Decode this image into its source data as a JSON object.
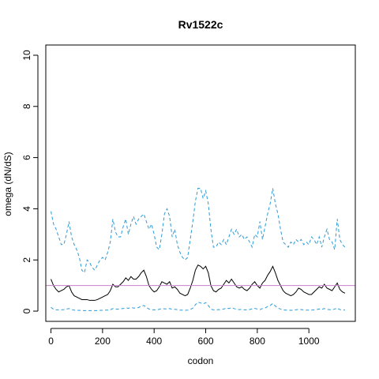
{
  "chart_data": {
    "type": "line",
    "title": "Rv1522c",
    "xlabel": "codon",
    "ylabel": "omega (dN/dS)",
    "xlim": [
      -20,
      1180
    ],
    "ylim": [
      -0.4,
      10.4
    ],
    "x_ticks": [
      0,
      200,
      400,
      600,
      800,
      1000
    ],
    "y_ticks": [
      0,
      2,
      4,
      6,
      8,
      10
    ],
    "grid": false,
    "reference_line": {
      "y": 1,
      "color": "#c77fc7"
    },
    "series": [
      {
        "role": "upper",
        "color": "#2b9bd8",
        "dash": "dashed",
        "x": [
          0,
          10,
          20,
          30,
          40,
          50,
          60,
          70,
          80,
          90,
          100,
          110,
          120,
          130,
          140,
          150,
          160,
          170,
          180,
          190,
          200,
          210,
          220,
          230,
          240,
          250,
          260,
          270,
          280,
          290,
          300,
          310,
          320,
          330,
          340,
          350,
          360,
          370,
          380,
          390,
          400,
          410,
          420,
          430,
          440,
          450,
          460,
          470,
          480,
          490,
          500,
          510,
          520,
          530,
          540,
          550,
          560,
          570,
          580,
          590,
          600,
          610,
          620,
          630,
          640,
          650,
          660,
          670,
          680,
          690,
          700,
          710,
          720,
          730,
          740,
          750,
          760,
          770,
          780,
          790,
          800,
          810,
          820,
          830,
          840,
          850,
          860,
          870,
          880,
          890,
          900,
          910,
          920,
          930,
          940,
          950,
          960,
          970,
          980,
          990,
          1000,
          1010,
          1020,
          1030,
          1040,
          1050,
          1060,
          1070,
          1080,
          1090,
          1100,
          1110,
          1120,
          1130,
          1140
        ],
        "values": [
          3.9,
          3.4,
          3.2,
          2.9,
          2.6,
          2.6,
          3.0,
          3.5,
          2.9,
          2.6,
          2.4,
          2.1,
          1.6,
          1.5,
          2.0,
          1.9,
          1.7,
          1.6,
          1.8,
          2.0,
          2.1,
          2.0,
          2.3,
          2.7,
          3.6,
          3.1,
          2.9,
          2.9,
          3.3,
          3.6,
          3.0,
          3.4,
          3.7,
          3.4,
          3.6,
          3.7,
          3.8,
          3.5,
          3.2,
          3.4,
          3.0,
          2.5,
          2.4,
          3.0,
          3.8,
          4.0,
          3.7,
          2.9,
          3.2,
          2.6,
          2.3,
          2.1,
          2.0,
          2.1,
          2.8,
          3.5,
          4.3,
          4.8,
          4.8,
          4.4,
          4.7,
          4.2,
          3.2,
          2.5,
          2.5,
          2.7,
          2.6,
          2.8,
          2.6,
          2.9,
          3.2,
          3.0,
          3.2,
          2.9,
          3.0,
          2.8,
          2.9,
          2.7,
          2.5,
          3.0,
          2.9,
          3.5,
          2.8,
          3.3,
          3.8,
          4.2,
          4.8,
          4.2,
          3.8,
          3.2,
          2.7,
          2.6,
          2.5,
          2.7,
          2.6,
          2.8,
          2.7,
          2.8,
          2.6,
          2.7,
          2.6,
          2.9,
          2.8,
          2.6,
          2.9,
          2.5,
          2.9,
          3.2,
          2.8,
          2.7,
          2.4,
          3.6,
          2.8,
          2.6,
          2.5
        ]
      },
      {
        "role": "estimate",
        "color": "#000000",
        "dash": "solid",
        "x": [
          0,
          10,
          20,
          30,
          40,
          50,
          60,
          70,
          80,
          90,
          100,
          110,
          120,
          130,
          140,
          150,
          160,
          170,
          180,
          190,
          200,
          210,
          220,
          230,
          240,
          250,
          260,
          270,
          280,
          290,
          300,
          310,
          320,
          330,
          340,
          350,
          360,
          370,
          380,
          390,
          400,
          410,
          420,
          430,
          440,
          450,
          460,
          470,
          480,
          490,
          500,
          510,
          520,
          530,
          540,
          550,
          560,
          570,
          580,
          590,
          600,
          610,
          620,
          630,
          640,
          650,
          660,
          670,
          680,
          690,
          700,
          710,
          720,
          730,
          740,
          750,
          760,
          770,
          780,
          790,
          800,
          810,
          820,
          830,
          840,
          850,
          860,
          870,
          880,
          890,
          900,
          910,
          920,
          930,
          940,
          950,
          960,
          970,
          980,
          990,
          1000,
          1010,
          1020,
          1030,
          1040,
          1050,
          1060,
          1070,
          1080,
          1090,
          1100,
          1110,
          1120,
          1130,
          1140
        ],
        "values": [
          1.25,
          1.0,
          0.85,
          0.75,
          0.8,
          0.85,
          0.95,
          1.0,
          0.75,
          0.6,
          0.55,
          0.5,
          0.45,
          0.45,
          0.45,
          0.42,
          0.42,
          0.42,
          0.45,
          0.5,
          0.55,
          0.6,
          0.65,
          0.8,
          1.05,
          0.95,
          0.95,
          1.05,
          1.15,
          1.3,
          1.2,
          1.35,
          1.25,
          1.25,
          1.35,
          1.5,
          1.6,
          1.35,
          1.0,
          0.85,
          0.75,
          0.8,
          0.95,
          1.15,
          1.1,
          1.05,
          1.15,
          0.9,
          0.95,
          0.85,
          0.7,
          0.65,
          0.6,
          0.65,
          0.9,
          1.2,
          1.6,
          1.8,
          1.75,
          1.65,
          1.75,
          1.5,
          1.0,
          0.8,
          0.75,
          0.85,
          0.9,
          1.05,
          1.2,
          1.1,
          1.25,
          1.1,
          0.95,
          0.9,
          0.95,
          0.85,
          0.8,
          0.9,
          1.05,
          1.15,
          1.0,
          0.9,
          1.1,
          1.2,
          1.4,
          1.55,
          1.75,
          1.5,
          1.2,
          1.0,
          0.8,
          0.7,
          0.65,
          0.6,
          0.65,
          0.75,
          0.9,
          0.85,
          0.75,
          0.7,
          0.65,
          0.65,
          0.75,
          0.85,
          0.95,
          0.9,
          1.05,
          0.9,
          0.85,
          0.8,
          0.95,
          1.1,
          0.85,
          0.75,
          0.7
        ]
      },
      {
        "role": "lower",
        "color": "#2b9bd8",
        "dash": "dashed",
        "x": [
          0,
          10,
          20,
          30,
          40,
          50,
          60,
          70,
          80,
          90,
          100,
          110,
          120,
          130,
          140,
          150,
          160,
          170,
          180,
          190,
          200,
          210,
          220,
          230,
          240,
          250,
          260,
          270,
          280,
          290,
          300,
          310,
          320,
          330,
          340,
          350,
          360,
          370,
          380,
          390,
          400,
          410,
          420,
          430,
          440,
          450,
          460,
          470,
          480,
          490,
          500,
          510,
          520,
          530,
          540,
          550,
          560,
          570,
          580,
          590,
          600,
          610,
          620,
          630,
          640,
          650,
          660,
          670,
          680,
          690,
          700,
          710,
          720,
          730,
          740,
          750,
          760,
          770,
          780,
          790,
          800,
          810,
          820,
          830,
          840,
          850,
          860,
          870,
          880,
          890,
          900,
          910,
          920,
          930,
          940,
          950,
          960,
          970,
          980,
          990,
          1000,
          1010,
          1020,
          1030,
          1040,
          1050,
          1060,
          1070,
          1080,
          1090,
          1100,
          1110,
          1120,
          1130,
          1140
        ],
        "values": [
          0.15,
          0.07,
          0.05,
          0.05,
          0.05,
          0.06,
          0.08,
          0.1,
          0.06,
          0.04,
          0.03,
          0.03,
          0.02,
          0.02,
          0.02,
          0.02,
          0.02,
          0.02,
          0.02,
          0.03,
          0.03,
          0.04,
          0.04,
          0.05,
          0.1,
          0.08,
          0.08,
          0.09,
          0.1,
          0.13,
          0.11,
          0.14,
          0.12,
          0.12,
          0.14,
          0.2,
          0.22,
          0.15,
          0.08,
          0.06,
          0.05,
          0.05,
          0.07,
          0.1,
          0.09,
          0.08,
          0.1,
          0.07,
          0.07,
          0.06,
          0.04,
          0.04,
          0.03,
          0.04,
          0.06,
          0.12,
          0.25,
          0.35,
          0.32,
          0.28,
          0.33,
          0.22,
          0.08,
          0.05,
          0.05,
          0.06,
          0.06,
          0.08,
          0.12,
          0.1,
          0.14,
          0.1,
          0.07,
          0.06,
          0.07,
          0.05,
          0.05,
          0.06,
          0.09,
          0.11,
          0.08,
          0.06,
          0.1,
          0.12,
          0.18,
          0.22,
          0.3,
          0.2,
          0.12,
          0.08,
          0.05,
          0.04,
          0.04,
          0.03,
          0.04,
          0.05,
          0.07,
          0.06,
          0.05,
          0.04,
          0.04,
          0.04,
          0.05,
          0.06,
          0.08,
          0.07,
          0.1,
          0.07,
          0.06,
          0.05,
          0.08,
          0.12,
          0.06,
          0.05,
          0.04
        ]
      }
    ]
  }
}
